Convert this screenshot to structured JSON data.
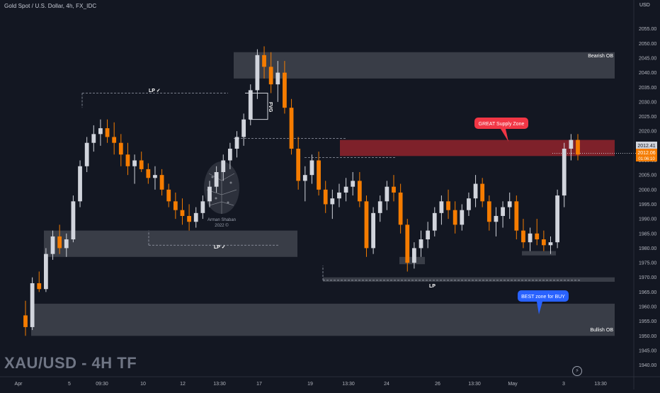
{
  "header": {
    "symbol_title": "Gold Spot / U.S. Dollar, 4h, FX_IDC",
    "watermark": "XAU/USD - 4H TF",
    "price_axis_title": "USD"
  },
  "colors": {
    "background": "#131722",
    "bull_candle": "#d1d4dc",
    "bear_candle": "#f57c00",
    "zone_gray": "#5a5d66",
    "supply_zone": "#a3262e",
    "callout_red": "#f23645",
    "callout_blue": "#2962ff",
    "current_price_bull": "#d1d4dc",
    "current_price_bear": "#f57c00"
  },
  "chart_data": {
    "type": "candlestick",
    "ylim": [
      1937,
      2060
    ],
    "y_ticks": [
      1940,
      1945,
      1950,
      1955,
      1960,
      1965,
      1970,
      1975,
      1980,
      1985,
      1990,
      1995,
      2000,
      2005,
      2010,
      2015,
      2020,
      2025,
      2030,
      2035,
      2040,
      2045,
      2050,
      2055
    ],
    "x_ticks": [
      "Apr",
      "5",
      "09:30",
      "10",
      "12",
      "13:30",
      "17",
      "19",
      "13:30",
      "24",
      "26",
      "13:30",
      "May",
      "3",
      "13:30"
    ],
    "current_price": "2012.41",
    "current_price_alt": "2012.06",
    "countdown": "01:06:10",
    "candles": [
      [
        1957,
        1962,
        1950,
        1953
      ],
      [
        1953,
        1970,
        1952,
        1968
      ],
      [
        1968,
        1972,
        1965,
        1966
      ],
      [
        1966,
        1980,
        1965,
        1978
      ],
      [
        1978,
        1986,
        1976,
        1984
      ],
      [
        1984,
        1988,
        1978,
        1980
      ],
      [
        1980,
        1985,
        1977,
        1983
      ],
      [
        1983,
        1998,
        1982,
        1996
      ],
      [
        1996,
        2010,
        1994,
        2008
      ],
      [
        2008,
        2018,
        2006,
        2016
      ],
      [
        2016,
        2022,
        2013,
        2019
      ],
      [
        2019,
        2024,
        2015,
        2021
      ],
      [
        2021,
        2024,
        2016,
        2018
      ],
      [
        2018,
        2023,
        2012,
        2016
      ],
      [
        2016,
        2019,
        2008,
        2012
      ],
      [
        2012,
        2016,
        2005,
        2008
      ],
      [
        2008,
        2012,
        2002,
        2010
      ],
      [
        2010,
        2013,
        2006,
        2007
      ],
      [
        2007,
        2009,
        2002,
        2004
      ],
      [
        2004,
        2008,
        2000,
        2005
      ],
      [
        2005,
        2007,
        1998,
        2000
      ],
      [
        2000,
        2002,
        1994,
        1996
      ],
      [
        1996,
        1999,
        1990,
        1993
      ],
      [
        1993,
        1997,
        1988,
        1991
      ],
      [
        1991,
        1995,
        1986,
        1989
      ],
      [
        1989,
        1994,
        1987,
        1992
      ],
      [
        1992,
        1998,
        1990,
        1996
      ],
      [
        1996,
        2003,
        1994,
        2001
      ],
      [
        2001,
        2008,
        1999,
        2006
      ],
      [
        2006,
        2012,
        2003,
        2010
      ],
      [
        2010,
        2016,
        2007,
        2014
      ],
      [
        2014,
        2020,
        2011,
        2018
      ],
      [
        2018,
        2026,
        2015,
        2024
      ],
      [
        2024,
        2036,
        2022,
        2034
      ],
      [
        2034,
        2048,
        2031,
        2046
      ],
      [
        2046,
        2049,
        2038,
        2042
      ],
      [
        2042,
        2047,
        2033,
        2036
      ],
      [
        2036,
        2044,
        2030,
        2040
      ],
      [
        2040,
        2044,
        2026,
        2028
      ],
      [
        2028,
        2031,
        2012,
        2014
      ],
      [
        2014,
        2018,
        2000,
        2003
      ],
      [
        2003,
        2008,
        1996,
        2005
      ],
      [
        2005,
        2012,
        2002,
        2010
      ],
      [
        2010,
        2013,
        1998,
        2000
      ],
      [
        2000,
        2003,
        1992,
        1995
      ],
      [
        1995,
        2000,
        1990,
        1997
      ],
      [
        1997,
        2002,
        1994,
        1999
      ],
      [
        1999,
        2004,
        1996,
        2001
      ],
      [
        2001,
        2006,
        1998,
        2003
      ],
      [
        2003,
        2006,
        1994,
        1996
      ],
      [
        1996,
        1998,
        1977,
        1980
      ],
      [
        1980,
        1994,
        1978,
        1992
      ],
      [
        1992,
        1998,
        1989,
        1996
      ],
      [
        1996,
        2003,
        1993,
        2001
      ],
      [
        2001,
        2005,
        1996,
        1999
      ],
      [
        1999,
        2002,
        1985,
        1988
      ],
      [
        1988,
        1990,
        1972,
        1975
      ],
      [
        1975,
        1982,
        1973,
        1980
      ],
      [
        1980,
        1986,
        1977,
        1983
      ],
      [
        1983,
        1989,
        1980,
        1986
      ],
      [
        1986,
        1994,
        1984,
        1992
      ],
      [
        1992,
        1998,
        1988,
        1996
      ],
      [
        1996,
        2000,
        1990,
        1993
      ],
      [
        1993,
        1996,
        1985,
        1988
      ],
      [
        1988,
        1995,
        1986,
        1993
      ],
      [
        1993,
        1999,
        1991,
        1997
      ],
      [
        1997,
        2005,
        1994,
        2002
      ],
      [
        2002,
        2004,
        1994,
        1996
      ],
      [
        1996,
        1998,
        1986,
        1989
      ],
      [
        1989,
        1994,
        1984,
        1991
      ],
      [
        1991,
        1996,
        1987,
        1994
      ],
      [
        1994,
        1999,
        1990,
        1996
      ],
      [
        1996,
        1998,
        1983,
        1986
      ],
      [
        1986,
        1990,
        1980,
        1982
      ],
      [
        1982,
        1987,
        1979,
        1985
      ],
      [
        1985,
        1990,
        1981,
        1983
      ],
      [
        1983,
        1986,
        1979,
        1981
      ],
      [
        1981,
        1984,
        1978,
        1982
      ],
      [
        1982,
        2000,
        1980,
        1998
      ],
      [
        1998,
        2016,
        1994,
        2014
      ],
      [
        2014,
        2019,
        2010,
        2017
      ],
      [
        2017,
        2019,
        2010,
        2012
      ]
    ],
    "annotations": {
      "bearish_ob_label": "Bearish OB",
      "bullish_ob_label": "Bullish OB",
      "fvg_label": "FVG",
      "lp_upper_label": "LP ✓",
      "lp_mid_label": "LP ✓",
      "lp_low_label": "LP",
      "supply_callout": "GREAT Supply Zone",
      "buy_callout": "BEST zone for BUY",
      "logo_name": "Arman Shaban",
      "logo_year": "2022 ©"
    }
  }
}
